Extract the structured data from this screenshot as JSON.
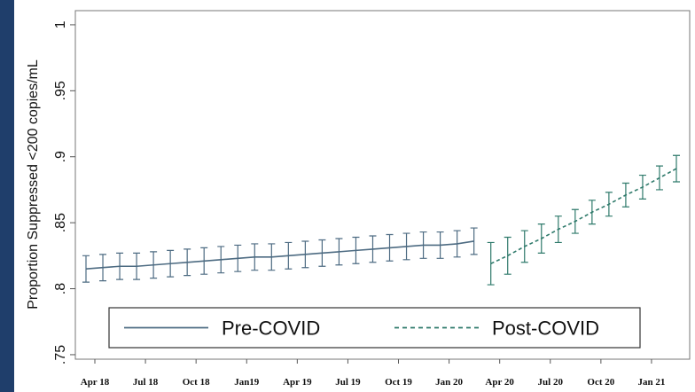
{
  "chart_data": {
    "type": "line",
    "ylabel": "Proportion Suppressed <200 copies/mL",
    "categories": [
      "Apr 18",
      null,
      null,
      "Jul 18",
      null,
      null,
      "Oct 18",
      null,
      null,
      "Jan19",
      null,
      null,
      "Apr 19",
      null,
      null,
      "Jul 19",
      null,
      null,
      "Oct 19",
      null,
      null,
      "Jan 20",
      null,
      null,
      "Apr 20",
      null,
      null,
      "Jul 20",
      null,
      null,
      "Oct 20",
      null,
      null,
      "Jan 21",
      null,
      null
    ],
    "series": [
      {
        "name": "Pre-COVID",
        "color": "#4d6b82",
        "line_style": "solid",
        "values": [
          0.815,
          0.816,
          0.817,
          0.817,
          0.818,
          0.819,
          0.82,
          0.821,
          0.822,
          0.823,
          0.824,
          0.824,
          0.825,
          0.826,
          0.827,
          0.828,
          0.829,
          0.83,
          0.831,
          0.832,
          0.833,
          0.833,
          0.834,
          0.836,
          null,
          null,
          null,
          null,
          null,
          null,
          null,
          null,
          null,
          null,
          null,
          null
        ],
        "errors": [
          0.01,
          0.01,
          0.01,
          0.01,
          0.01,
          0.01,
          0.01,
          0.01,
          0.01,
          0.01,
          0.01,
          0.01,
          0.01,
          0.01,
          0.01,
          0.01,
          0.01,
          0.01,
          0.01,
          0.01,
          0.01,
          0.01,
          0.01,
          0.01,
          null,
          null,
          null,
          null,
          null,
          null,
          null,
          null,
          null,
          null,
          null,
          null
        ]
      },
      {
        "name": "Post-COVID",
        "color": "#2f7a6b",
        "line_style": "dashed",
        "values": [
          null,
          null,
          null,
          null,
          null,
          null,
          null,
          null,
          null,
          null,
          null,
          null,
          null,
          null,
          null,
          null,
          null,
          null,
          null,
          null,
          null,
          null,
          null,
          null,
          0.819,
          0.825,
          0.832,
          0.838,
          0.845,
          0.851,
          0.858,
          0.864,
          0.871,
          0.877,
          0.884,
          0.891
        ],
        "errors": [
          null,
          null,
          null,
          null,
          null,
          null,
          null,
          null,
          null,
          null,
          null,
          null,
          null,
          null,
          null,
          null,
          null,
          null,
          null,
          null,
          null,
          null,
          null,
          null,
          0.016,
          0.014,
          0.012,
          0.011,
          0.01,
          0.009,
          0.009,
          0.009,
          0.009,
          0.009,
          0.009,
          0.01
        ]
      }
    ],
    "ylim": [
      0.7466,
      1.0107
    ],
    "yticks": [
      {
        "value": 0.75,
        "label": ".75"
      },
      {
        "value": 0.8,
        "label": ".8"
      },
      {
        "value": 0.85,
        "label": ".85"
      },
      {
        "value": 0.9,
        "label": ".9"
      },
      {
        "value": 0.95,
        "label": ".95"
      },
      1
    ],
    "grid": false,
    "legend": "bottom"
  }
}
